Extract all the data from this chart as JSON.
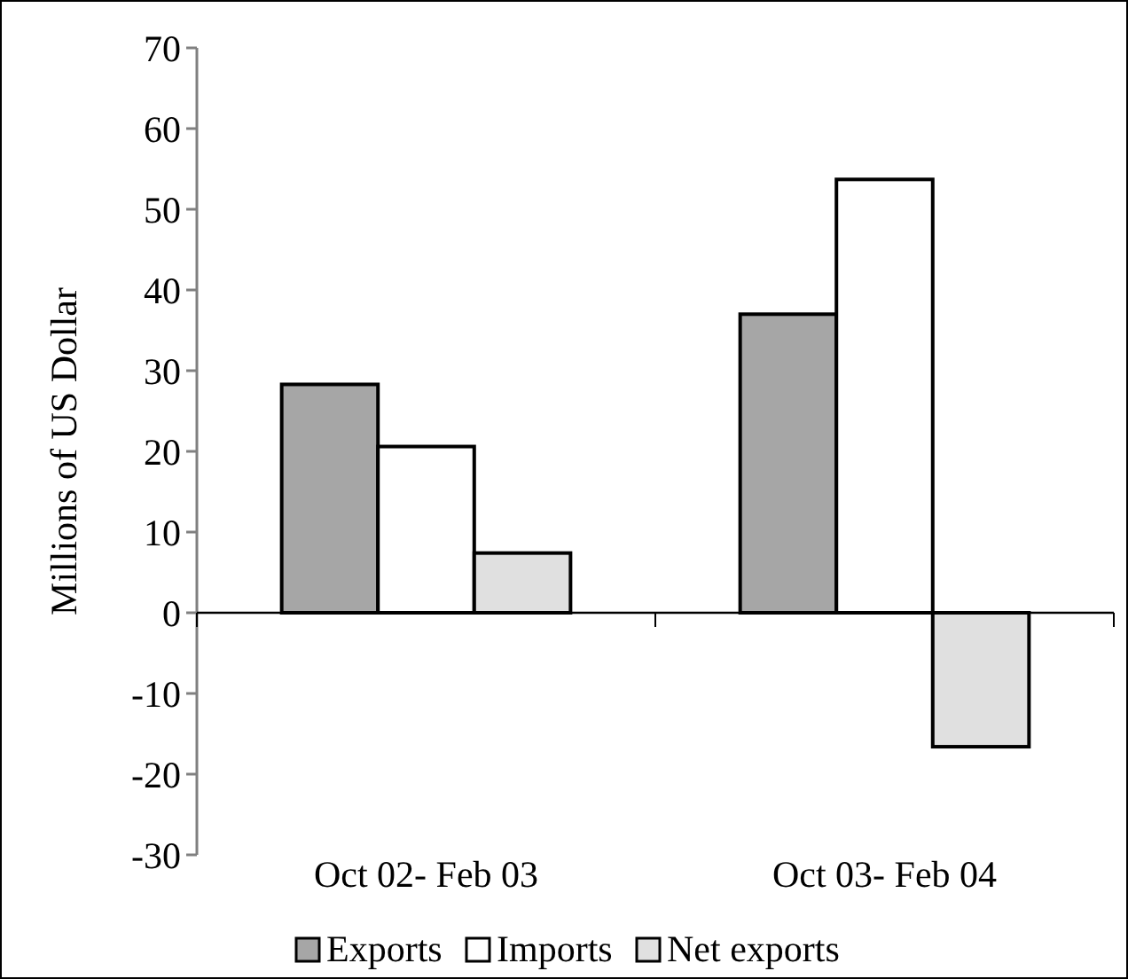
{
  "chart_data": {
    "type": "bar",
    "ylabel": "Millions of US Dollar",
    "categories": [
      "Oct 02- Feb 03",
      "Oct 03- Feb 04"
    ],
    "series": [
      {
        "name": "Exports",
        "color": "#a6a6a6",
        "values": [
          28.3,
          37.0
        ]
      },
      {
        "name": "Imports",
        "color": "#ffffff",
        "values": [
          20.6,
          53.7
        ]
      },
      {
        "name": "Net exports",
        "color": "#e0e0e0",
        "values": [
          7.4,
          -16.6
        ]
      }
    ],
    "ylim": [
      -30,
      70
    ],
    "yticks": [
      -30,
      -20,
      -10,
      0,
      10,
      20,
      30,
      40,
      50,
      60,
      70
    ],
    "legend": "bottom"
  }
}
